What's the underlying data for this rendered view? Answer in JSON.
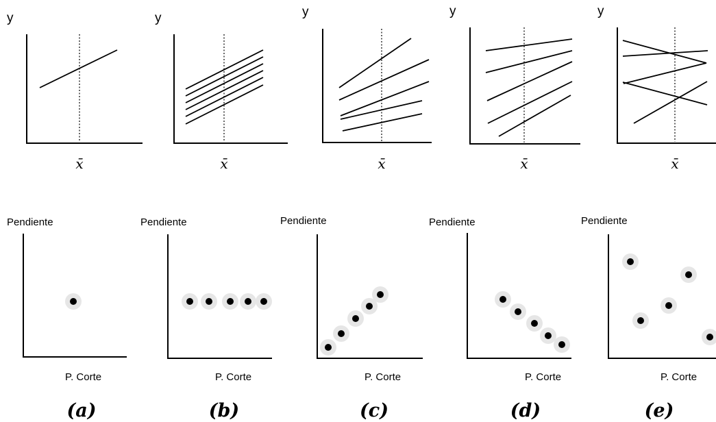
{
  "labels": {
    "y_axis": "y",
    "x_mean": "x̄",
    "slope_axis": "Pendiente",
    "intercept_axis": "P. Corte"
  },
  "panels": [
    {
      "id": "a",
      "caption": "(a)",
      "line_count": 1,
      "point_count": 1,
      "description": "single line"
    },
    {
      "id": "b",
      "caption": "(b)",
      "line_count": 6,
      "point_count": 5,
      "description": "parallel lines, same slope"
    },
    {
      "id": "c",
      "caption": "(c)",
      "line_count": 5,
      "point_count": 5,
      "description": "fanning lines, slope increases with intercept"
    },
    {
      "id": "d",
      "caption": "(d)",
      "line_count": 5,
      "point_count": 5,
      "description": "converging lines, slope decreases with intercept"
    },
    {
      "id": "e",
      "caption": "(e)",
      "line_count": 5,
      "point_count": 5,
      "description": "crossing lines, no relation"
    }
  ],
  "colors": {
    "ink": "#000000",
    "halo": "#e6e6e6",
    "background": "#ffffff"
  }
}
